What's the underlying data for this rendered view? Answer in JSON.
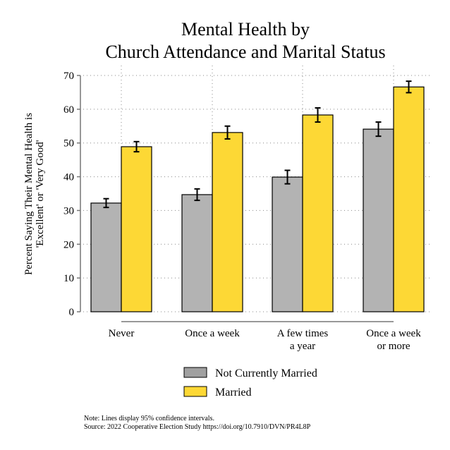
{
  "chart_data": {
    "type": "bar",
    "title": [
      "Mental Health by",
      "Church Attendance and Marital Status"
    ],
    "ylabel": [
      "Percent Saying Their Mental Health is",
      "'Excellent' or 'Very Good'"
    ],
    "xlabel": "",
    "ylim": [
      0,
      70
    ],
    "yticks": [
      0,
      10,
      20,
      30,
      40,
      50,
      60,
      70
    ],
    "grid": true,
    "categories": [
      [
        "Never"
      ],
      [
        "Once a week"
      ],
      [
        "A few times",
        "a year"
      ],
      [
        "Once a week",
        "or more"
      ]
    ],
    "series": [
      {
        "name": "Not Currently Married",
        "color": "#b3b3b3",
        "values": [
          32.2,
          34.7,
          39.9,
          54.1
        ],
        "ci": [
          1.3,
          1.7,
          2.0,
          2.1
        ]
      },
      {
        "name": "Married",
        "color": "#fdd835",
        "values": [
          48.9,
          53.1,
          58.3,
          66.6
        ],
        "ci": [
          1.5,
          1.9,
          2.1,
          1.7
        ]
      }
    ],
    "legend_position": "bottom-center",
    "notes": [
      "Note: Lines display 95% confidence intervals.",
      "Source: 2022 Cooperative Election Study https://doi.org/10.7910/DVN/PR4L8P"
    ]
  }
}
